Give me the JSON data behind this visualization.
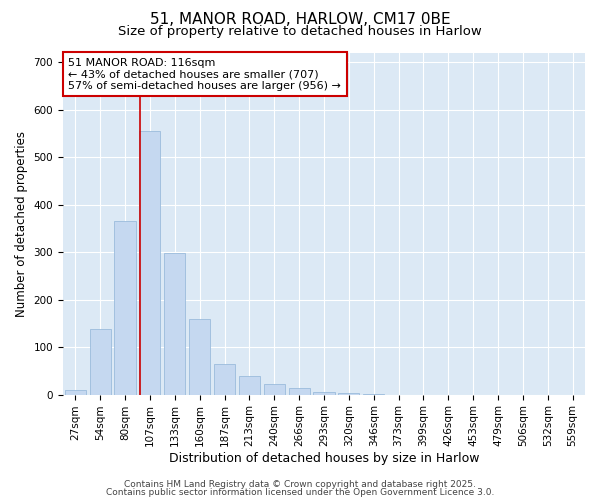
{
  "title1": "51, MANOR ROAD, HARLOW, CM17 0BE",
  "title2": "Size of property relative to detached houses in Harlow",
  "xlabel": "Distribution of detached houses by size in Harlow",
  "ylabel": "Number of detached properties",
  "categories": [
    "27sqm",
    "54sqm",
    "80sqm",
    "107sqm",
    "133sqm",
    "160sqm",
    "187sqm",
    "213sqm",
    "240sqm",
    "266sqm",
    "293sqm",
    "320sqm",
    "346sqm",
    "373sqm",
    "399sqm",
    "426sqm",
    "453sqm",
    "479sqm",
    "506sqm",
    "532sqm",
    "559sqm"
  ],
  "values": [
    10,
    138,
    365,
    555,
    298,
    160,
    65,
    40,
    22,
    13,
    5,
    3,
    2,
    0,
    0,
    0,
    0,
    0,
    0,
    0,
    0
  ],
  "bar_color": "#c5d8f0",
  "bar_edge_color": "#9bbcdc",
  "vline_color": "#cc0000",
  "vline_pos": 2.6,
  "annotation_text": "51 MANOR ROAD: 116sqm\n← 43% of detached houses are smaller (707)\n57% of semi-detached houses are larger (956) →",
  "annotation_box_facecolor": "#ffffff",
  "annotation_box_edgecolor": "#cc0000",
  "ylim": [
    0,
    720
  ],
  "yticks": [
    0,
    100,
    200,
    300,
    400,
    500,
    600,
    700
  ],
  "fig_background": "#ffffff",
  "axes_background": "#dce9f5",
  "grid_color": "#ffffff",
  "footer1": "Contains HM Land Registry data © Crown copyright and database right 2025.",
  "footer2": "Contains public sector information licensed under the Open Government Licence 3.0.",
  "title1_fontsize": 11,
  "title2_fontsize": 9.5,
  "tick_fontsize": 7.5,
  "annotation_fontsize": 8,
  "footer_fontsize": 6.5,
  "xlabel_fontsize": 9,
  "ylabel_fontsize": 8.5
}
